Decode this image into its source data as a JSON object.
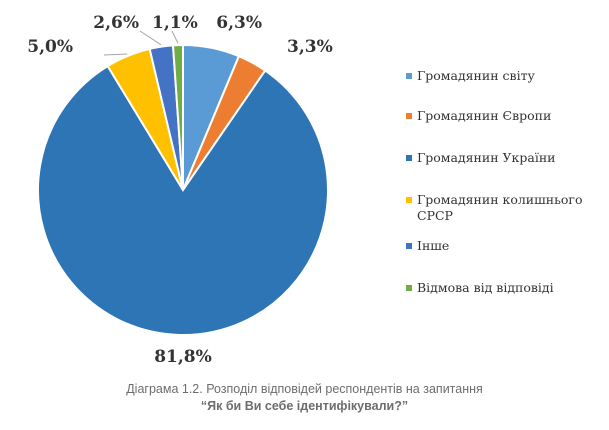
{
  "chart_data": {
    "type": "pie",
    "categories": [
      "Громадянин світу",
      "Громадянин Європи",
      "Громадянин України",
      "Громадянин колишнього СРСР",
      "Інше",
      "Відмова від відповіді"
    ],
    "values": [
      6.3,
      3.3,
      81.8,
      5.0,
      2.6,
      1.1
    ],
    "data_labels": [
      "6,3%",
      "3,3%",
      "81,8%",
      "5,0%",
      "2,6%",
      "1,1%"
    ],
    "colors": [
      "#5b9bd5",
      "#ed7d31",
      "#2e75b6",
      "#ffc000",
      "#4472c4",
      "#70ad47"
    ],
    "start_angle": "12 o'clock",
    "direction": "clockwise",
    "legend_position": "right"
  },
  "caption": {
    "line1": "Діаграма 1.2. Розподіл відповідей респондентів на запитання",
    "line2": "“Як би Ви себе ідентифікували?”"
  }
}
